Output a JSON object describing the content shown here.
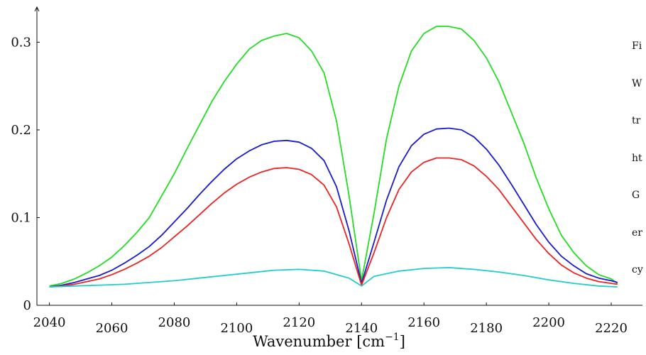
{
  "chart_data": {
    "type": "line",
    "title": "",
    "xlabel": "Wavenumber [cm",
    "xlabel_superscript": "−1",
    "xlabel_close": "]",
    "ylabel": "",
    "xlim": [
      2036,
      2230
    ],
    "ylim": [
      0,
      0.34
    ],
    "x_ticks": [
      2040,
      2060,
      2080,
      2100,
      2120,
      2140,
      2160,
      2180,
      2200,
      2220
    ],
    "y_ticks": [
      0,
      0.1,
      0.2,
      0.3
    ],
    "y_tick_labels": [
      "0",
      "0.1",
      "0.2",
      "0.3"
    ],
    "grid": false,
    "legend": "none",
    "series": [
      {
        "color": "#22dd22",
        "x": [
          2040,
          2044,
          2048,
          2052,
          2056,
          2060,
          2064,
          2068,
          2072,
          2076,
          2080,
          2084,
          2088,
          2092,
          2096,
          2100,
          2104,
          2108,
          2112,
          2116,
          2120,
          2124,
          2128,
          2132,
          2136,
          2140,
          2144,
          2148,
          2152,
          2156,
          2160,
          2164,
          2168,
          2172,
          2176,
          2180,
          2184,
          2188,
          2192,
          2196,
          2200,
          2204,
          2208,
          2212,
          2216,
          2220,
          2222
        ],
        "y": [
          0.022,
          0.025,
          0.03,
          0.037,
          0.045,
          0.055,
          0.068,
          0.083,
          0.1,
          0.125,
          0.15,
          0.178,
          0.205,
          0.232,
          0.255,
          0.275,
          0.292,
          0.302,
          0.307,
          0.31,
          0.305,
          0.29,
          0.265,
          0.21,
          0.125,
          0.028,
          0.105,
          0.19,
          0.25,
          0.29,
          0.31,
          0.318,
          0.318,
          0.315,
          0.302,
          0.282,
          0.255,
          0.22,
          0.185,
          0.145,
          0.11,
          0.08,
          0.06,
          0.045,
          0.035,
          0.03,
          0.025
        ]
      },
      {
        "color": "#1a1acc",
        "x": [
          2040,
          2044,
          2048,
          2052,
          2056,
          2060,
          2064,
          2068,
          2072,
          2076,
          2080,
          2084,
          2088,
          2092,
          2096,
          2100,
          2104,
          2108,
          2112,
          2116,
          2120,
          2124,
          2128,
          2132,
          2136,
          2140,
          2144,
          2148,
          2152,
          2156,
          2160,
          2164,
          2168,
          2172,
          2176,
          2180,
          2184,
          2188,
          2192,
          2196,
          2200,
          2204,
          2208,
          2212,
          2216,
          2220,
          2222
        ],
        "y": [
          0.021,
          0.023,
          0.026,
          0.03,
          0.034,
          0.04,
          0.048,
          0.057,
          0.067,
          0.08,
          0.095,
          0.11,
          0.126,
          0.141,
          0.155,
          0.167,
          0.176,
          0.183,
          0.187,
          0.188,
          0.186,
          0.179,
          0.165,
          0.135,
          0.085,
          0.025,
          0.072,
          0.12,
          0.158,
          0.182,
          0.195,
          0.201,
          0.202,
          0.2,
          0.192,
          0.178,
          0.16,
          0.138,
          0.115,
          0.092,
          0.072,
          0.056,
          0.045,
          0.036,
          0.031,
          0.028,
          0.026
        ]
      },
      {
        "color": "#ee2222",
        "x": [
          2040,
          2044,
          2048,
          2052,
          2056,
          2060,
          2064,
          2068,
          2072,
          2076,
          2080,
          2084,
          2088,
          2092,
          2096,
          2100,
          2104,
          2108,
          2112,
          2116,
          2120,
          2124,
          2128,
          2132,
          2136,
          2140,
          2144,
          2148,
          2152,
          2156,
          2160,
          2164,
          2168,
          2172,
          2176,
          2180,
          2184,
          2188,
          2192,
          2196,
          2200,
          2204,
          2208,
          2212,
          2216,
          2220,
          2222
        ],
        "y": [
          0.021,
          0.022,
          0.024,
          0.027,
          0.03,
          0.035,
          0.041,
          0.048,
          0.056,
          0.066,
          0.078,
          0.09,
          0.103,
          0.116,
          0.128,
          0.138,
          0.146,
          0.152,
          0.156,
          0.157,
          0.155,
          0.149,
          0.137,
          0.112,
          0.07,
          0.023,
          0.06,
          0.1,
          0.132,
          0.152,
          0.163,
          0.168,
          0.168,
          0.166,
          0.159,
          0.147,
          0.132,
          0.113,
          0.094,
          0.075,
          0.059,
          0.046,
          0.037,
          0.031,
          0.027,
          0.025,
          0.024
        ]
      },
      {
        "color": "#22cccc",
        "x": [
          2040,
          2048,
          2056,
          2064,
          2072,
          2080,
          2088,
          2096,
          2104,
          2112,
          2120,
          2128,
          2136,
          2140,
          2144,
          2152,
          2160,
          2168,
          2176,
          2184,
          2192,
          2200,
          2208,
          2216,
          2222
        ],
        "y": [
          0.021,
          0.022,
          0.023,
          0.024,
          0.026,
          0.028,
          0.031,
          0.034,
          0.037,
          0.04,
          0.041,
          0.039,
          0.031,
          0.022,
          0.033,
          0.039,
          0.042,
          0.043,
          0.041,
          0.038,
          0.034,
          0.029,
          0.025,
          0.022,
          0.021
        ]
      }
    ]
  },
  "side_text_lines": [
    "Fi",
    "W",
    "tr",
    "ht",
    "G",
    "er",
    "cy"
  ]
}
